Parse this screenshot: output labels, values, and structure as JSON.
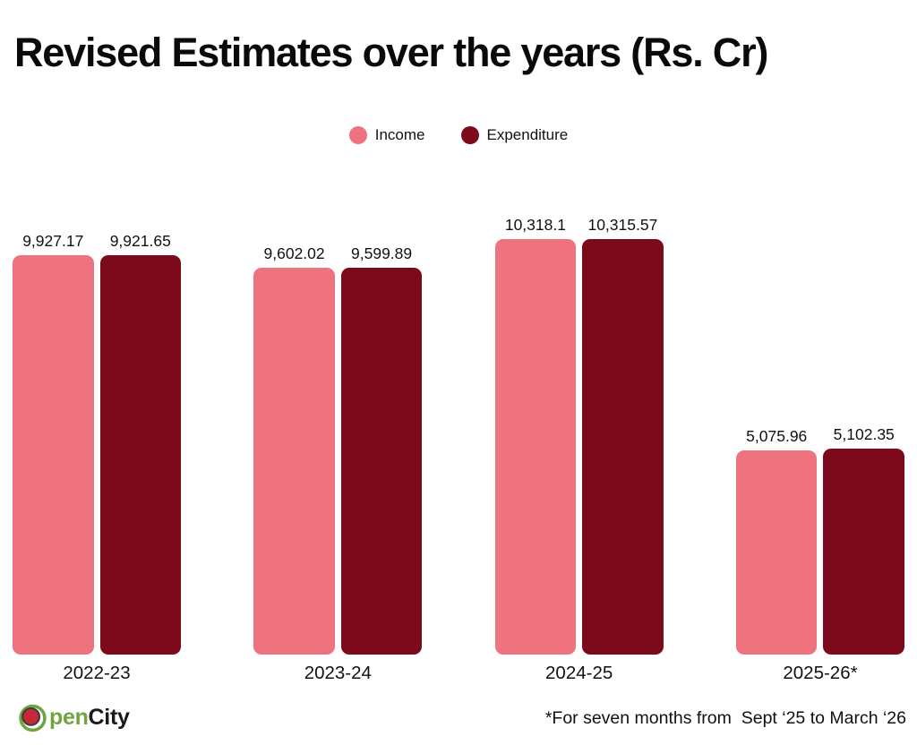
{
  "chart_data": {
    "type": "bar",
    "title": "Revised Estimates over the years (Rs. Cr)",
    "categories": [
      "2022-23",
      "2023-24",
      "2024-25",
      "2025-26*"
    ],
    "series": [
      {
        "name": "Income",
        "color": "#EE737E",
        "values": [
          9927.17,
          9602.02,
          10318.1,
          5075.96
        ],
        "labels": [
          "9,927.17",
          "9,602.02",
          "10,318.1",
          "5,075.96"
        ]
      },
      {
        "name": "Expenditure",
        "color": "#7D0A1A",
        "values": [
          9921.65,
          9599.89,
          10315.57,
          5102.35
        ],
        "labels": [
          "9,921.65",
          "9,599.89",
          "10,315.57",
          "5,102.35"
        ]
      }
    ],
    "xlabel": "",
    "ylabel": "",
    "ylim": [
      0,
      10800
    ],
    "grid": false,
    "legend_position": "top-center",
    "value_labels": "above-bars",
    "axes_shown": false
  },
  "footer": {
    "logo": {
      "icon": "opencity-o-icon",
      "text_green": "pen",
      "text_dark": "City",
      "green_color": "#6FA43F",
      "ball_color": "#C8293A",
      "dark_color": "#1a1a1a"
    },
    "footnote": "*For seven months from  Sept ‘25 to March ‘26"
  }
}
